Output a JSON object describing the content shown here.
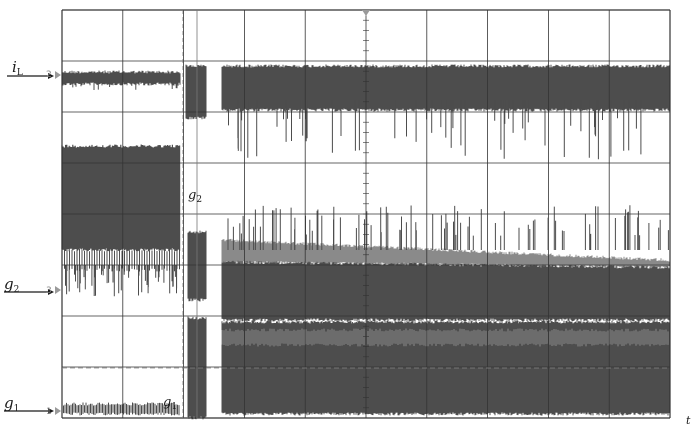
{
  "chart_data": {
    "type": "line",
    "title": "",
    "xlabel": "t",
    "ylabel": "",
    "grid": true,
    "grid_divisions": {
      "x": 10,
      "y": 8
    },
    "palette": {
      "trace": "#4d4d4d",
      "trace_light": "#8a8a8a",
      "grid": "#333333",
      "marker": "#9a9a9a"
    },
    "series": [
      {
        "name": "i_L",
        "label_main": "i",
        "label_sub": "L",
        "channel_tag": "2"
      },
      {
        "name": "g2",
        "label_main": "g",
        "label_sub": "2",
        "channel_tag": "3"
      },
      {
        "name": "g1",
        "label_main": "g",
        "label_sub": "1",
        "channel_tag": "1"
      }
    ],
    "annotations": [
      {
        "text_main": "g",
        "text_sub": "2",
        "near": "g2 trace restart"
      },
      {
        "text_main": "g",
        "text_sub": "1",
        "near": "g1 trace restart"
      }
    ],
    "x_axis_end_label": "t"
  }
}
